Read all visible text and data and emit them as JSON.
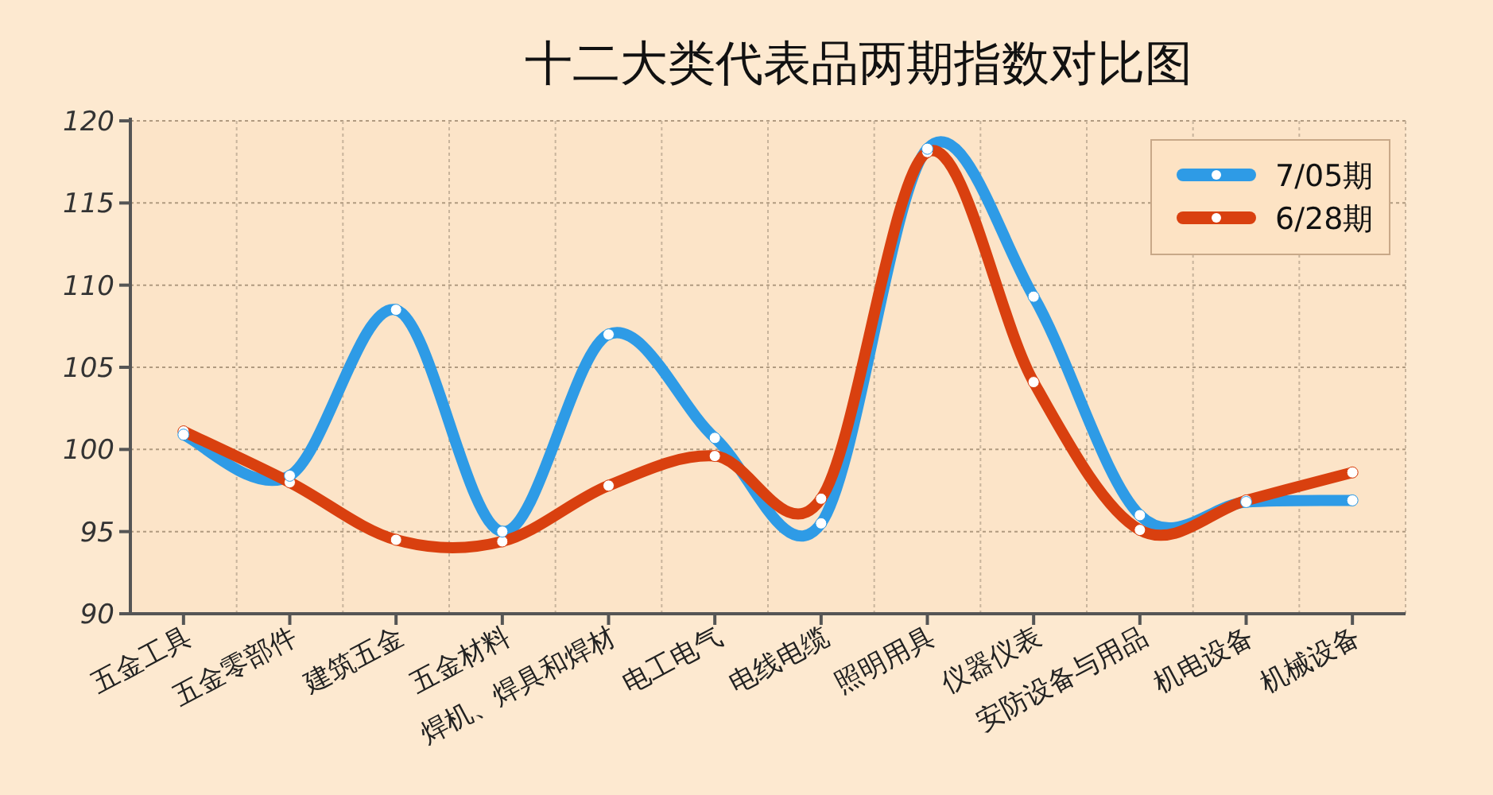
{
  "chart_data": {
    "type": "line",
    "title": "十二大类代表品两期指数对比图",
    "categories": [
      "五金工具",
      "五金零部件",
      "建筑五金",
      "五金材料",
      "焊机、焊具和焊材",
      "电工电气",
      "电线电缆",
      "照明用具",
      "仪器仪表",
      "安防设备与用品",
      "机电设备",
      "机械设备"
    ],
    "series": [
      {
        "name": "7/05期",
        "color": "#2e9be6",
        "values": [
          100.9,
          98.4,
          108.5,
          95.0,
          107.0,
          100.7,
          95.5,
          118.3,
          109.3,
          96.0,
          96.8,
          96.9
        ]
      },
      {
        "name": "6/28期",
        "color": "#d9400f",
        "values": [
          101.1,
          98.0,
          94.5,
          94.4,
          97.8,
          99.6,
          97.0,
          118.1,
          104.1,
          95.1,
          96.9,
          98.6
        ]
      }
    ],
    "ylim": [
      90,
      120
    ],
    "yticks": [
      90,
      95,
      100,
      105,
      110,
      115,
      120
    ],
    "grid": true,
    "legend": "top right",
    "marker": "circle"
  }
}
